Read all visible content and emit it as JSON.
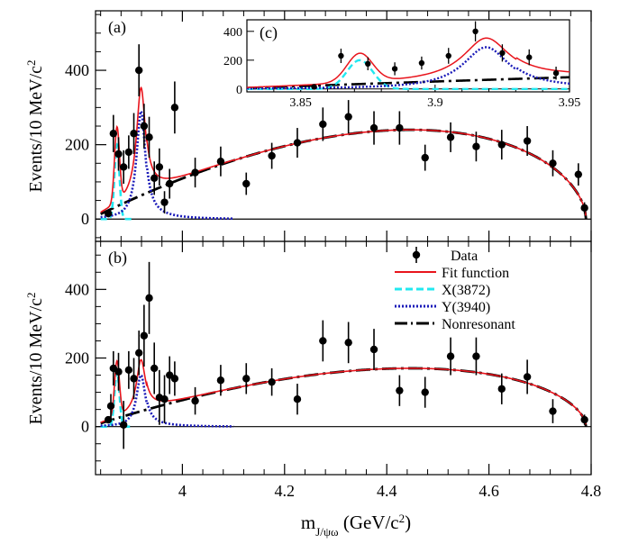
{
  "chart_data": {
    "type": "scatter",
    "x_axis": {
      "label_main": "m",
      "label_sub": "J/ψω",
      "label_unit_pre": " (GeV/c",
      "label_unit_sup": "2",
      "label_unit_post": ")",
      "range": [
        3.83,
        4.8
      ],
      "ticks": [
        4.0,
        4.2,
        4.4,
        4.6,
        4.8
      ],
      "tick_labels": [
        "4",
        "4.2",
        "4.4",
        "4.6",
        "4.8"
      ]
    },
    "y_axis_label_main": "Events/10 MeV/c",
    "y_axis_label_sup": "2",
    "legend": {
      "data": "Data",
      "fit": "Fit function",
      "x3872": "X(3872)",
      "y3940": "Y(3940)",
      "nonres": "Nonresonant"
    },
    "colors": {
      "data": "#000000",
      "fit": "#e8141c",
      "x3872": "#22e8f0",
      "y3940": "#1a1ab8",
      "nonres": "#000000"
    },
    "panels": [
      {
        "label": "(a)",
        "ylim": [
          -60,
          560
        ],
        "yticks": [
          0,
          200,
          400
        ],
        "ytick_labels": [
          "0",
          "200",
          "400"
        ],
        "data": [
          {
            "x": 3.855,
            "y": 15,
            "err": 10
          },
          {
            "x": 3.865,
            "y": 230,
            "err": 50
          },
          {
            "x": 3.875,
            "y": 175,
            "err": 45
          },
          {
            "x": 3.885,
            "y": 140,
            "err": 45
          },
          {
            "x": 3.895,
            "y": 180,
            "err": 45
          },
          {
            "x": 3.905,
            "y": 230,
            "err": 55
          },
          {
            "x": 3.915,
            "y": 400,
            "err": 70
          },
          {
            "x": 3.925,
            "y": 250,
            "err": 60
          },
          {
            "x": 3.935,
            "y": 220,
            "err": 55
          },
          {
            "x": 3.945,
            "y": 110,
            "err": 45
          },
          {
            "x": 3.955,
            "y": 140,
            "err": 50
          },
          {
            "x": 3.965,
            "y": 45,
            "err": 30
          },
          {
            "x": 3.975,
            "y": 95,
            "err": 40
          },
          {
            "x": 3.985,
            "y": 300,
            "err": 70
          },
          {
            "x": 4.025,
            "y": 125,
            "err": 40
          },
          {
            "x": 4.075,
            "y": 155,
            "err": 40
          },
          {
            "x": 4.125,
            "y": 95,
            "err": 30
          },
          {
            "x": 4.175,
            "y": 170,
            "err": 35
          },
          {
            "x": 4.225,
            "y": 205,
            "err": 40
          },
          {
            "x": 4.275,
            "y": 255,
            "err": 45
          },
          {
            "x": 4.325,
            "y": 275,
            "err": 45
          },
          {
            "x": 4.375,
            "y": 245,
            "err": 45
          },
          {
            "x": 4.425,
            "y": 245,
            "err": 45
          },
          {
            "x": 4.475,
            "y": 165,
            "err": 35
          },
          {
            "x": 4.525,
            "y": 220,
            "err": 40
          },
          {
            "x": 4.575,
            "y": 195,
            "err": 40
          },
          {
            "x": 4.625,
            "y": 200,
            "err": 40
          },
          {
            "x": 4.675,
            "y": 210,
            "err": 40
          },
          {
            "x": 4.725,
            "y": 150,
            "err": 35
          },
          {
            "x": 4.775,
            "y": 120,
            "err": 30
          },
          {
            "x": 4.787,
            "y": 30,
            "err": 15
          }
        ],
        "model": {
          "nonres_peak": 240,
          "x_amp": 200,
          "y_amp": 290,
          "y_tail": 12
        }
      },
      {
        "label": "(b)",
        "ylim": [
          -140,
          540
        ],
        "yticks": [
          0,
          200,
          400
        ],
        "ytick_labels": [
          "0",
          "200",
          "400"
        ],
        "data": [
          {
            "x": 3.855,
            "y": 20,
            "err": 10
          },
          {
            "x": 3.86,
            "y": 60,
            "err": 35
          },
          {
            "x": 3.865,
            "y": 170,
            "err": 50
          },
          {
            "x": 3.875,
            "y": 160,
            "err": 55
          },
          {
            "x": 3.885,
            "y": 5,
            "err": 70
          },
          {
            "x": 3.895,
            "y": 165,
            "err": 55
          },
          {
            "x": 3.905,
            "y": 140,
            "err": 60
          },
          {
            "x": 3.915,
            "y": 215,
            "err": 65
          },
          {
            "x": 3.925,
            "y": 265,
            "err": 90
          },
          {
            "x": 3.935,
            "y": 375,
            "err": 105
          },
          {
            "x": 3.945,
            "y": 170,
            "err": 75
          },
          {
            "x": 3.955,
            "y": 85,
            "err": 80
          },
          {
            "x": 3.965,
            "y": 80,
            "err": 70
          },
          {
            "x": 3.975,
            "y": 150,
            "err": 55
          },
          {
            "x": 3.985,
            "y": 140,
            "err": 50
          },
          {
            "x": 4.025,
            "y": 75,
            "err": 40
          },
          {
            "x": 4.075,
            "y": 135,
            "err": 45
          },
          {
            "x": 4.125,
            "y": 140,
            "err": 45
          },
          {
            "x": 4.175,
            "y": 130,
            "err": 40
          },
          {
            "x": 4.225,
            "y": 80,
            "err": 45
          },
          {
            "x": 4.275,
            "y": 250,
            "err": 60
          },
          {
            "x": 4.325,
            "y": 245,
            "err": 60
          },
          {
            "x": 4.375,
            "y": 225,
            "err": 60
          },
          {
            "x": 4.425,
            "y": 105,
            "err": 45
          },
          {
            "x": 4.475,
            "y": 100,
            "err": 45
          },
          {
            "x": 4.525,
            "y": 205,
            "err": 55
          },
          {
            "x": 4.575,
            "y": 205,
            "err": 55
          },
          {
            "x": 4.625,
            "y": 110,
            "err": 45
          },
          {
            "x": 4.675,
            "y": 145,
            "err": 50
          },
          {
            "x": 4.725,
            "y": 45,
            "err": 35
          },
          {
            "x": 4.787,
            "y": 20,
            "err": 15
          }
        ],
        "model": {
          "nonres_peak": 170,
          "x_amp": 160,
          "y_amp": 150,
          "y_tail": 8
        }
      }
    ],
    "inset": {
      "label": "(c)",
      "xlim": [
        3.83,
        3.95
      ],
      "ylim": [
        -20,
        480
      ],
      "xticks": [
        3.85,
        3.9,
        3.95
      ],
      "xtick_labels": [
        "3.85",
        "3.9",
        "3.95"
      ],
      "yticks": [
        0,
        200,
        400
      ],
      "ytick_labels": [
        "0",
        "200",
        "400"
      ],
      "data": [
        {
          "x": 3.855,
          "y": 15,
          "err": 10
        },
        {
          "x": 3.865,
          "y": 230,
          "err": 50
        },
        {
          "x": 3.875,
          "y": 175,
          "err": 45
        },
        {
          "x": 3.885,
          "y": 140,
          "err": 45
        },
        {
          "x": 3.895,
          "y": 180,
          "err": 45
        },
        {
          "x": 3.905,
          "y": 230,
          "err": 55
        },
        {
          "x": 3.915,
          "y": 400,
          "err": 70
        },
        {
          "x": 3.925,
          "y": 250,
          "err": 60
        },
        {
          "x": 3.935,
          "y": 220,
          "err": 55
        },
        {
          "x": 3.945,
          "y": 110,
          "err": 45
        }
      ]
    }
  }
}
